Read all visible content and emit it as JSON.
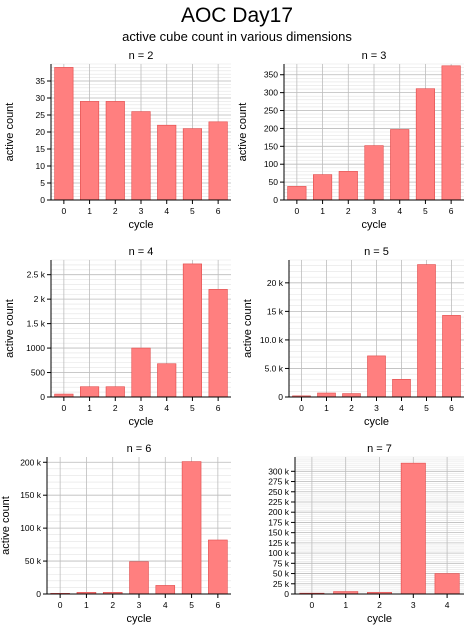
{
  "page": {
    "title": "AOC Day17",
    "subtitle": "active cube count in various dimensions"
  },
  "colors": {
    "bar_fill": "#ff7f7f",
    "bar_edge": "#e04a4a",
    "plot_bg": "#ffffff",
    "grid": "#bdbdbd",
    "grid_minor": "#e3e3e3"
  },
  "chart_data": [
    {
      "type": "bar",
      "title": "n = 2",
      "xlabel": "cycle",
      "ylabel": "active count",
      "categories": [
        "0",
        "1",
        "2",
        "3",
        "4",
        "5",
        "6"
      ],
      "values": [
        39,
        29,
        29,
        26,
        22,
        21,
        23
      ],
      "ylim": [
        0,
        40
      ],
      "yticks": [
        0,
        5,
        10,
        15,
        20,
        25,
        30,
        35
      ],
      "yticklabels": [
        "0",
        "5",
        "10",
        "15",
        "20",
        "25",
        "30",
        "35"
      ],
      "grid": true
    },
    {
      "type": "bar",
      "title": "n = 3",
      "xlabel": "cycle",
      "ylabel": "active count",
      "categories": [
        "0",
        "1",
        "2",
        "3",
        "4",
        "5",
        "6"
      ],
      "values": [
        38,
        71,
        80,
        152,
        197,
        311,
        375
      ],
      "ylim": [
        0,
        380
      ],
      "yticks": [
        0,
        50,
        100,
        150,
        200,
        250,
        300,
        350
      ],
      "yticklabels": [
        "0",
        "50",
        "100",
        "150",
        "200",
        "250",
        "300",
        "350"
      ],
      "grid": true
    },
    {
      "type": "bar",
      "title": "n = 4",
      "xlabel": "cycle",
      "ylabel": "active count",
      "categories": [
        "0",
        "1",
        "2",
        "3",
        "4",
        "5",
        "6"
      ],
      "values": [
        60,
        210,
        210,
        1000,
        680,
        2720,
        2200
      ],
      "ylim": [
        0,
        2800
      ],
      "yticks": [
        0,
        500,
        1000,
        1500,
        2000,
        2500
      ],
      "yticklabels": [
        "0",
        "500",
        "1000",
        "1.5 k",
        "2 k",
        "2.5 k"
      ],
      "grid": true
    },
    {
      "type": "bar",
      "title": "n = 5",
      "xlabel": "cycle",
      "ylabel": "active count",
      "categories": [
        "0",
        "1",
        "2",
        "3",
        "4",
        "5",
        "6"
      ],
      "values": [
        200,
        700,
        600,
        7200,
        3100,
        23200,
        14300
      ],
      "ylim": [
        0,
        24000
      ],
      "yticks": [
        0,
        5000,
        10000,
        15000,
        20000
      ],
      "yticklabels": [
        "0",
        "5.0 k",
        "10.0 k",
        "15 k",
        "20 k"
      ],
      "grid": true
    },
    {
      "type": "bar",
      "title": "n = 6",
      "xlabel": "cycle",
      "ylabel": "active count",
      "categories": [
        "0",
        "1",
        "2",
        "3",
        "4",
        "5",
        "6"
      ],
      "values": [
        1000,
        2500,
        2500,
        49000,
        13000,
        201000,
        82000
      ],
      "ylim": [
        0,
        208000
      ],
      "yticks": [
        0,
        50000,
        100000,
        150000,
        200000
      ],
      "yticklabels": [
        "0",
        "50 k",
        "100 k",
        "150 k",
        "200 k"
      ],
      "grid": true
    },
    {
      "type": "bar",
      "title": "n = 7",
      "xlabel": "cycle",
      "ylabel": "",
      "categories": [
        "0",
        "1",
        "2",
        "3",
        "4"
      ],
      "values": [
        2000,
        6000,
        4000,
        320000,
        50000
      ],
      "ylim": [
        0,
        335000
      ],
      "yticks": [
        0,
        25000,
        50000,
        75000,
        100000,
        125000,
        150000,
        175000,
        200000,
        225000,
        250000,
        275000,
        300000
      ],
      "yticklabels": [
        "0",
        "25 k",
        "50 k",
        "75 k",
        "100 k",
        "125 k",
        "150 k",
        "175 k",
        "200 k",
        "225 k",
        "250 k",
        "275 k",
        "300 k"
      ],
      "grid": true
    }
  ]
}
